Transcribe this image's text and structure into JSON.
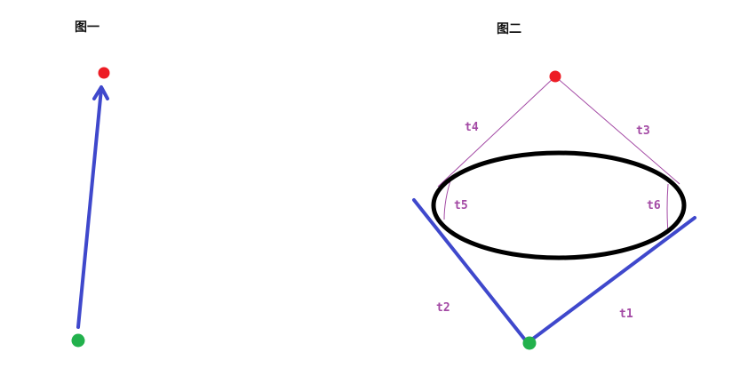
{
  "figure1": {
    "title": "图一"
  },
  "figure2": {
    "title": "图二",
    "labels": {
      "t1": "t1",
      "t2": "t2",
      "t3": "t3",
      "t4": "t4",
      "t5": "t5",
      "t6": "t6"
    }
  },
  "colors": {
    "start_point": "#22b14c",
    "end_point": "#ed1c24",
    "path_stroke": "#3f48cc",
    "thin_path": "#a349a4",
    "label": "#a349a4",
    "obstacle": "#000000"
  }
}
